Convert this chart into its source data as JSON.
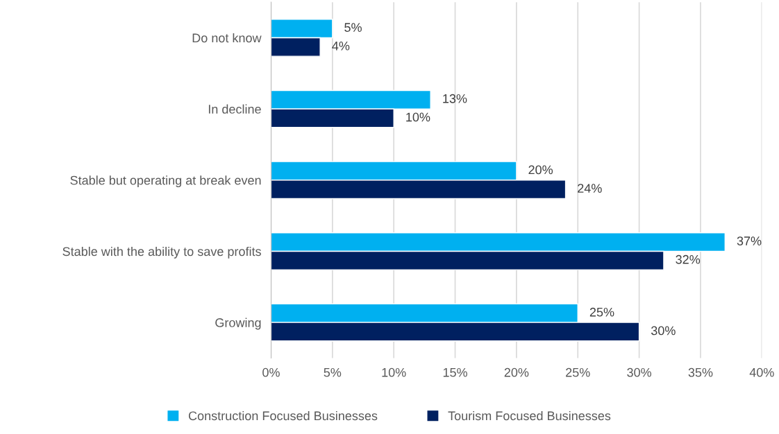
{
  "chart_data": {
    "type": "bar",
    "orientation": "horizontal",
    "categories": [
      "Do not know",
      "In decline",
      "Stable but operating at break even",
      "Stable with the ability to save profits",
      "Growing"
    ],
    "series": [
      {
        "name": "Construction Focused Businesses",
        "color": "#00b0f0",
        "values": [
          5,
          13,
          20,
          37,
          25
        ],
        "value_labels": [
          "5%",
          "13%",
          "20%",
          "37%",
          "25%"
        ]
      },
      {
        "name": "Tourism Focused Businesses",
        "color": "#002060",
        "values": [
          4,
          10,
          24,
          32,
          30
        ],
        "value_labels": [
          "4%",
          "10%",
          "24%",
          "32%",
          "30%"
        ]
      }
    ],
    "xlim": [
      0,
      40
    ],
    "xticks": [
      {
        "value": 0,
        "label": "0%"
      },
      {
        "value": 5,
        "label": "5%"
      },
      {
        "value": 10,
        "label": "10%"
      },
      {
        "value": 15,
        "label": "15%"
      },
      {
        "value": 20,
        "label": "20%"
      },
      {
        "value": 25,
        "label": "25%"
      },
      {
        "value": 30,
        "label": "30%"
      },
      {
        "value": 35,
        "label": "35%"
      },
      {
        "value": 40,
        "label": "40%"
      }
    ],
    "grid": "x",
    "legend": "bottom"
  }
}
